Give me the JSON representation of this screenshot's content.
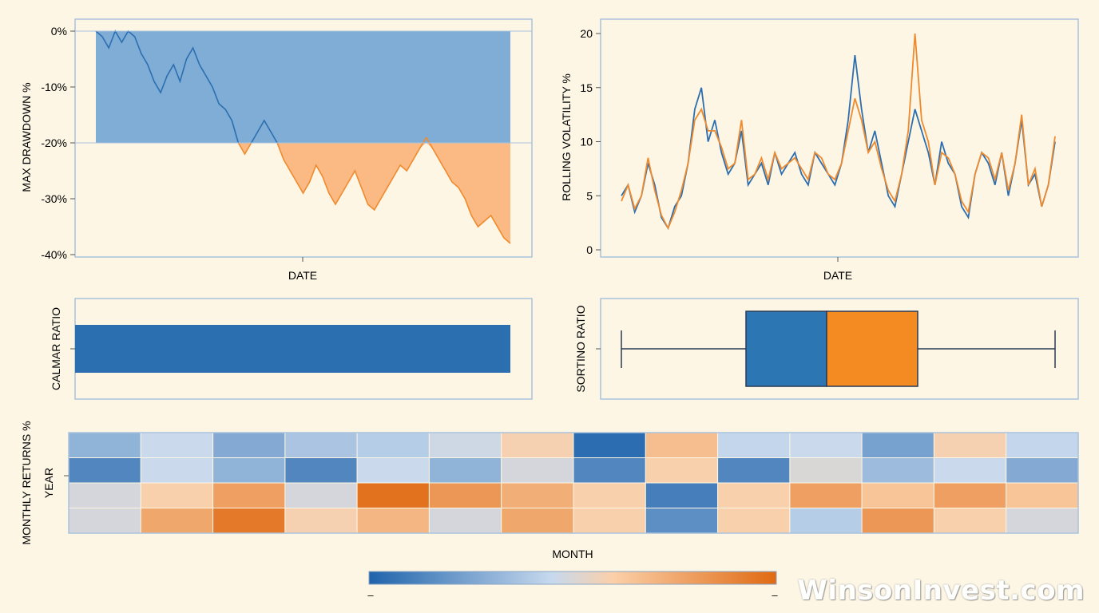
{
  "chart_data": [
    {
      "type": "area",
      "ylabel": "MAX DRAWDOWN %",
      "xlabel": "DATE",
      "yticks": [
        "0%",
        "-10%",
        "-20%",
        "-30%",
        "-40%"
      ],
      "ylim": [
        -40,
        0
      ],
      "threshold": -20,
      "series": [
        {
          "color": "#2c6fb0",
          "values": [
            0,
            -1,
            -3,
            0,
            -2,
            0,
            -1,
            -4,
            -6,
            -9,
            -11,
            -8,
            -6,
            -9,
            -5,
            -3,
            -6,
            -8,
            -10,
            -13,
            -14,
            -16,
            -20,
            -22,
            -20,
            -18,
            -16,
            -18,
            -20,
            -23,
            -25,
            -27,
            -29,
            -27,
            -24,
            -26,
            -29,
            -31,
            -29,
            -27,
            -25,
            -28,
            -31,
            -32,
            -30,
            -28,
            -26,
            -24,
            -25,
            -23,
            -21,
            -19,
            -21,
            -23,
            -25,
            -27,
            -28,
            -30,
            -33,
            -35,
            -34,
            -33,
            -35,
            -37,
            -38
          ]
        }
      ]
    },
    {
      "type": "line",
      "ylabel": "ROLLING VOLATILITY %",
      "xlabel": "DATE",
      "yticks": [
        "20",
        "15",
        "10",
        "5",
        "0"
      ],
      "ylim": [
        0,
        20
      ],
      "series": [
        {
          "color": "#2c6fb0",
          "values": [
            5,
            6,
            3.5,
            5,
            8,
            6,
            3,
            2,
            4,
            5,
            8,
            13,
            15,
            10,
            12,
            9,
            7,
            8,
            11,
            6,
            7,
            8,
            6,
            9,
            7,
            8,
            9,
            7,
            6,
            9,
            8,
            7,
            6,
            8,
            12,
            18,
            13,
            9,
            11,
            8,
            5,
            4,
            7,
            10,
            13,
            11,
            9,
            6,
            10,
            8,
            7,
            4,
            3,
            7,
            9,
            8,
            6,
            9,
            5,
            8,
            12,
            6,
            7,
            4,
            6,
            10
          ]
        },
        {
          "color": "#ef8a2e",
          "values": [
            4.5,
            6,
            3.8,
            5,
            8.5,
            5.5,
            3.2,
            2,
            3.5,
            5.5,
            8,
            12,
            13,
            11,
            11,
            9.5,
            7.5,
            8,
            12,
            6.5,
            7,
            8.5,
            6.5,
            9,
            7.5,
            8,
            8.5,
            7.5,
            6.5,
            9,
            8.5,
            7,
            6.5,
            8,
            11,
            14,
            12,
            9,
            10,
            7.5,
            5.5,
            4.5,
            7,
            11,
            20,
            12,
            10,
            6,
            9,
            8.5,
            7,
            4.5,
            3.5,
            7,
            9,
            8.5,
            6.5,
            9,
            5.5,
            8,
            12.5,
            6,
            7.5,
            4,
            6,
            10.5
          ]
        }
      ]
    },
    {
      "type": "bar",
      "ylabel": "CALMAR RATIO",
      "bar_color": "#2c6fb0"
    },
    {
      "type": "box",
      "ylabel": "SORTINO RATIO",
      "colors": [
        "#2c6fb0",
        "#ef8a2e"
      ]
    },
    {
      "type": "heatmap",
      "ylabel": "MONTHLY RETURNS %\nYEAR",
      "xlabel": "MONTH",
      "colorscale": [
        "#1f63ab",
        "#c7d9ee",
        "#fbcfa8",
        "#e06a12"
      ],
      "colorbar_ticks": [
        "–",
        "–"
      ],
      "rows": [
        [
          -0.55,
          -0.3,
          -0.6,
          -0.45,
          -0.4,
          -0.25,
          0.25,
          -0.95,
          0.45,
          -0.35,
          -0.3,
          -0.65,
          0.25,
          -0.35
        ],
        [
          -0.8,
          -0.3,
          -0.55,
          -0.8,
          -0.3,
          -0.55,
          -0.15,
          -0.8,
          0.3,
          -0.8,
          -0.1,
          -0.5,
          -0.3,
          -0.6
        ],
        [
          -0.15,
          0.3,
          0.65,
          -0.15,
          0.95,
          0.7,
          0.55,
          0.3,
          -0.85,
          0.3,
          0.65,
          0.4,
          0.65,
          0.4
        ],
        [
          -0.15,
          0.6,
          0.9,
          0.25,
          0.5,
          -0.15,
          0.6,
          0.3,
          -0.75,
          0.3,
          -0.4,
          0.7,
          0.3,
          -0.15
        ]
      ]
    }
  ],
  "watermark": "WinsonInvest.com"
}
